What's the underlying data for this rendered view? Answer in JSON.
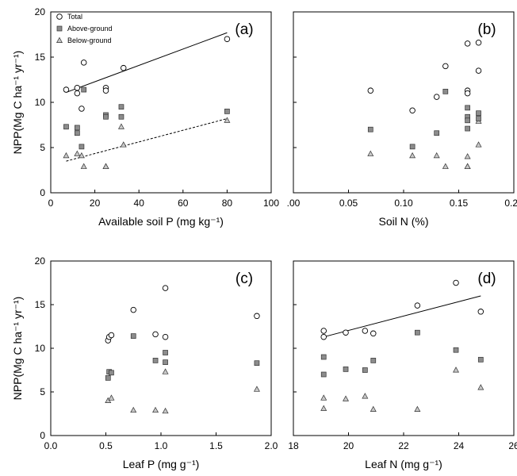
{
  "legend": [
    {
      "name": "Total",
      "marker": "circle"
    },
    {
      "name": "Above-ground",
      "marker": "square"
    },
    {
      "name": "Below-ground",
      "marker": "triangle"
    }
  ],
  "colors": {
    "open_marker_stroke": "#000000",
    "square_fill": "#8c8c8c",
    "triangle_fill": "#c8c8c8"
  },
  "chart_data": [
    {
      "type": "scatter",
      "panel_label": "(a)",
      "xlabel": "Available soil P (mg kg⁻¹)",
      "ylabel": "NPP(Mg C ha⁻¹ yr⁻¹)",
      "xlim": [
        0,
        100
      ],
      "ylim": [
        0,
        20
      ],
      "xticks": [
        "0",
        "20",
        "40",
        "60",
        "80",
        "100"
      ],
      "yticks": [
        "0",
        "5",
        "10",
        "15",
        "20"
      ],
      "legend_position": "top-left",
      "series": [
        {
          "name": "Total",
          "marker": "circle",
          "points": [
            [
              7,
              11.4
            ],
            [
              12,
              11.6
            ],
            [
              12,
              11
            ],
            [
              14,
              9.3
            ],
            [
              15,
              14.4
            ],
            [
              25,
              11.6
            ],
            [
              25,
              11.3
            ],
            [
              33,
              13.8
            ],
            [
              80,
              17
            ]
          ]
        },
        {
          "name": "Above-ground",
          "marker": "square",
          "points": [
            [
              7,
              7.3
            ],
            [
              12,
              7.2
            ],
            [
              12,
              6.6
            ],
            [
              14,
              5.1
            ],
            [
              15,
              11.4
            ],
            [
              25,
              8.6
            ],
            [
              25,
              8.4
            ],
            [
              32,
              9.5
            ],
            [
              32,
              8.4
            ],
            [
              80,
              9
            ]
          ]
        },
        {
          "name": "Below-ground",
          "marker": "triangle",
          "points": [
            [
              7,
              4.1
            ],
            [
              12,
              4.3
            ],
            [
              14,
              4.1
            ],
            [
              15,
              2.9
            ],
            [
              25,
              2.9
            ],
            [
              25,
              2.9
            ],
            [
              32,
              7.3
            ],
            [
              33,
              5.3
            ],
            [
              80,
              8
            ]
          ]
        }
      ],
      "trendlines": [
        {
          "style": "solid",
          "x": [
            7,
            80
          ],
          "y": [
            11.1,
            17.7
          ]
        },
        {
          "style": "dashed",
          "x": [
            7,
            80
          ],
          "y": [
            3.5,
            8.2
          ]
        }
      ]
    },
    {
      "type": "scatter",
      "panel_label": "(b)",
      "xlabel": "Soil N (%)",
      "ylabel": "",
      "xlim": [
        0,
        0.2
      ],
      "ylim": [
        0,
        20
      ],
      "xticks": [
        ".00",
        "0.05",
        "0.10",
        "0.15",
        "0.20"
      ],
      "yticks": [],
      "series": [
        {
          "name": "Total",
          "marker": "circle",
          "points": [
            [
              0.07,
              11.3
            ],
            [
              0.108,
              9.1
            ],
            [
              0.13,
              10.6
            ],
            [
              0.138,
              14
            ],
            [
              0.158,
              16.5
            ],
            [
              0.158,
              11.3
            ],
            [
              0.158,
              11
            ],
            [
              0.168,
              16.6
            ],
            [
              0.168,
              13.5
            ]
          ]
        },
        {
          "name": "Above-ground",
          "marker": "square",
          "points": [
            [
              0.07,
              7
            ],
            [
              0.108,
              5.1
            ],
            [
              0.13,
              6.6
            ],
            [
              0.138,
              11.2
            ],
            [
              0.158,
              9.4
            ],
            [
              0.158,
              8.4
            ],
            [
              0.158,
              8
            ],
            [
              0.158,
              7.1
            ],
            [
              0.168,
              8.8
            ],
            [
              0.168,
              8.2
            ]
          ]
        },
        {
          "name": "Below-ground",
          "marker": "triangle",
          "points": [
            [
              0.07,
              4.3
            ],
            [
              0.108,
              4.1
            ],
            [
              0.13,
              4.1
            ],
            [
              0.138,
              2.9
            ],
            [
              0.158,
              4
            ],
            [
              0.158,
              2.9
            ],
            [
              0.158,
              2.9
            ],
            [
              0.168,
              7.9
            ],
            [
              0.168,
              5.3
            ]
          ]
        }
      ],
      "trendlines": []
    },
    {
      "type": "scatter",
      "panel_label": "(c)",
      "xlabel": "Leaf P (mg g⁻¹)",
      "ylabel": "NPP(Mg C ha⁻¹ yr⁻¹)",
      "xlim": [
        0,
        2
      ],
      "ylim": [
        0,
        20
      ],
      "xticks": [
        "0.0",
        "0.5",
        "1.0",
        "1.5",
        "2.0"
      ],
      "yticks": [
        "0",
        "5",
        "10",
        "15",
        "20"
      ],
      "series": [
        {
          "name": "Total",
          "marker": "circle",
          "points": [
            [
              0.52,
              10.9
            ],
            [
              0.53,
              11.3
            ],
            [
              0.55,
              11.5
            ],
            [
              0.75,
              14.4
            ],
            [
              0.95,
              11.6
            ],
            [
              1.04,
              11.3
            ],
            [
              1.04,
              16.9
            ],
            [
              1.87,
              13.7
            ]
          ]
        },
        {
          "name": "Above-ground",
          "marker": "square",
          "points": [
            [
              0.52,
              6.6
            ],
            [
              0.53,
              7.3
            ],
            [
              0.55,
              7.2
            ],
            [
              0.75,
              11.4
            ],
            [
              0.95,
              8.6
            ],
            [
              1.04,
              9.5
            ],
            [
              1.04,
              8.4
            ],
            [
              1.87,
              8.3
            ]
          ]
        },
        {
          "name": "Below-ground",
          "marker": "triangle",
          "points": [
            [
              0.52,
              4
            ],
            [
              0.55,
              4.3
            ],
            [
              0.75,
              2.9
            ],
            [
              0.95,
              2.9
            ],
            [
              1.04,
              2.8
            ],
            [
              1.04,
              7.3
            ],
            [
              1.87,
              5.3
            ]
          ]
        }
      ],
      "trendlines": []
    },
    {
      "type": "scatter",
      "panel_label": "(d)",
      "xlabel": "Leaf N (mg g⁻¹)",
      "ylabel": "",
      "xlim": [
        18,
        26
      ],
      "ylim": [
        0,
        20
      ],
      "xticks": [
        "18",
        "20",
        "22",
        "24",
        "26"
      ],
      "yticks": [],
      "series": [
        {
          "name": "Total",
          "marker": "circle",
          "points": [
            [
              19.1,
              12
            ],
            [
              19.1,
              11.3
            ],
            [
              19.9,
              11.8
            ],
            [
              20.6,
              12
            ],
            [
              20.9,
              11.7
            ],
            [
              22.5,
              14.9
            ],
            [
              23.9,
              17.5
            ],
            [
              24.8,
              14.2
            ]
          ]
        },
        {
          "name": "Above-ground",
          "marker": "square",
          "points": [
            [
              19.1,
              9
            ],
            [
              19.1,
              7
            ],
            [
              19.9,
              7.6
            ],
            [
              20.6,
              7.5
            ],
            [
              20.9,
              8.6
            ],
            [
              22.5,
              11.8
            ],
            [
              23.9,
              9.8
            ],
            [
              24.8,
              8.7
            ]
          ]
        },
        {
          "name": "Below-ground",
          "marker": "triangle",
          "points": [
            [
              19.1,
              4.3
            ],
            [
              19.1,
              3.1
            ],
            [
              19.9,
              4.2
            ],
            [
              20.6,
              4.5
            ],
            [
              20.9,
              3
            ],
            [
              22.5,
              3
            ],
            [
              23.9,
              7.5
            ],
            [
              24.8,
              5.5
            ]
          ]
        }
      ],
      "trendlines": [
        {
          "style": "solid",
          "x": [
            19.1,
            24.8
          ],
          "y": [
            11.3,
            16
          ]
        }
      ]
    }
  ]
}
